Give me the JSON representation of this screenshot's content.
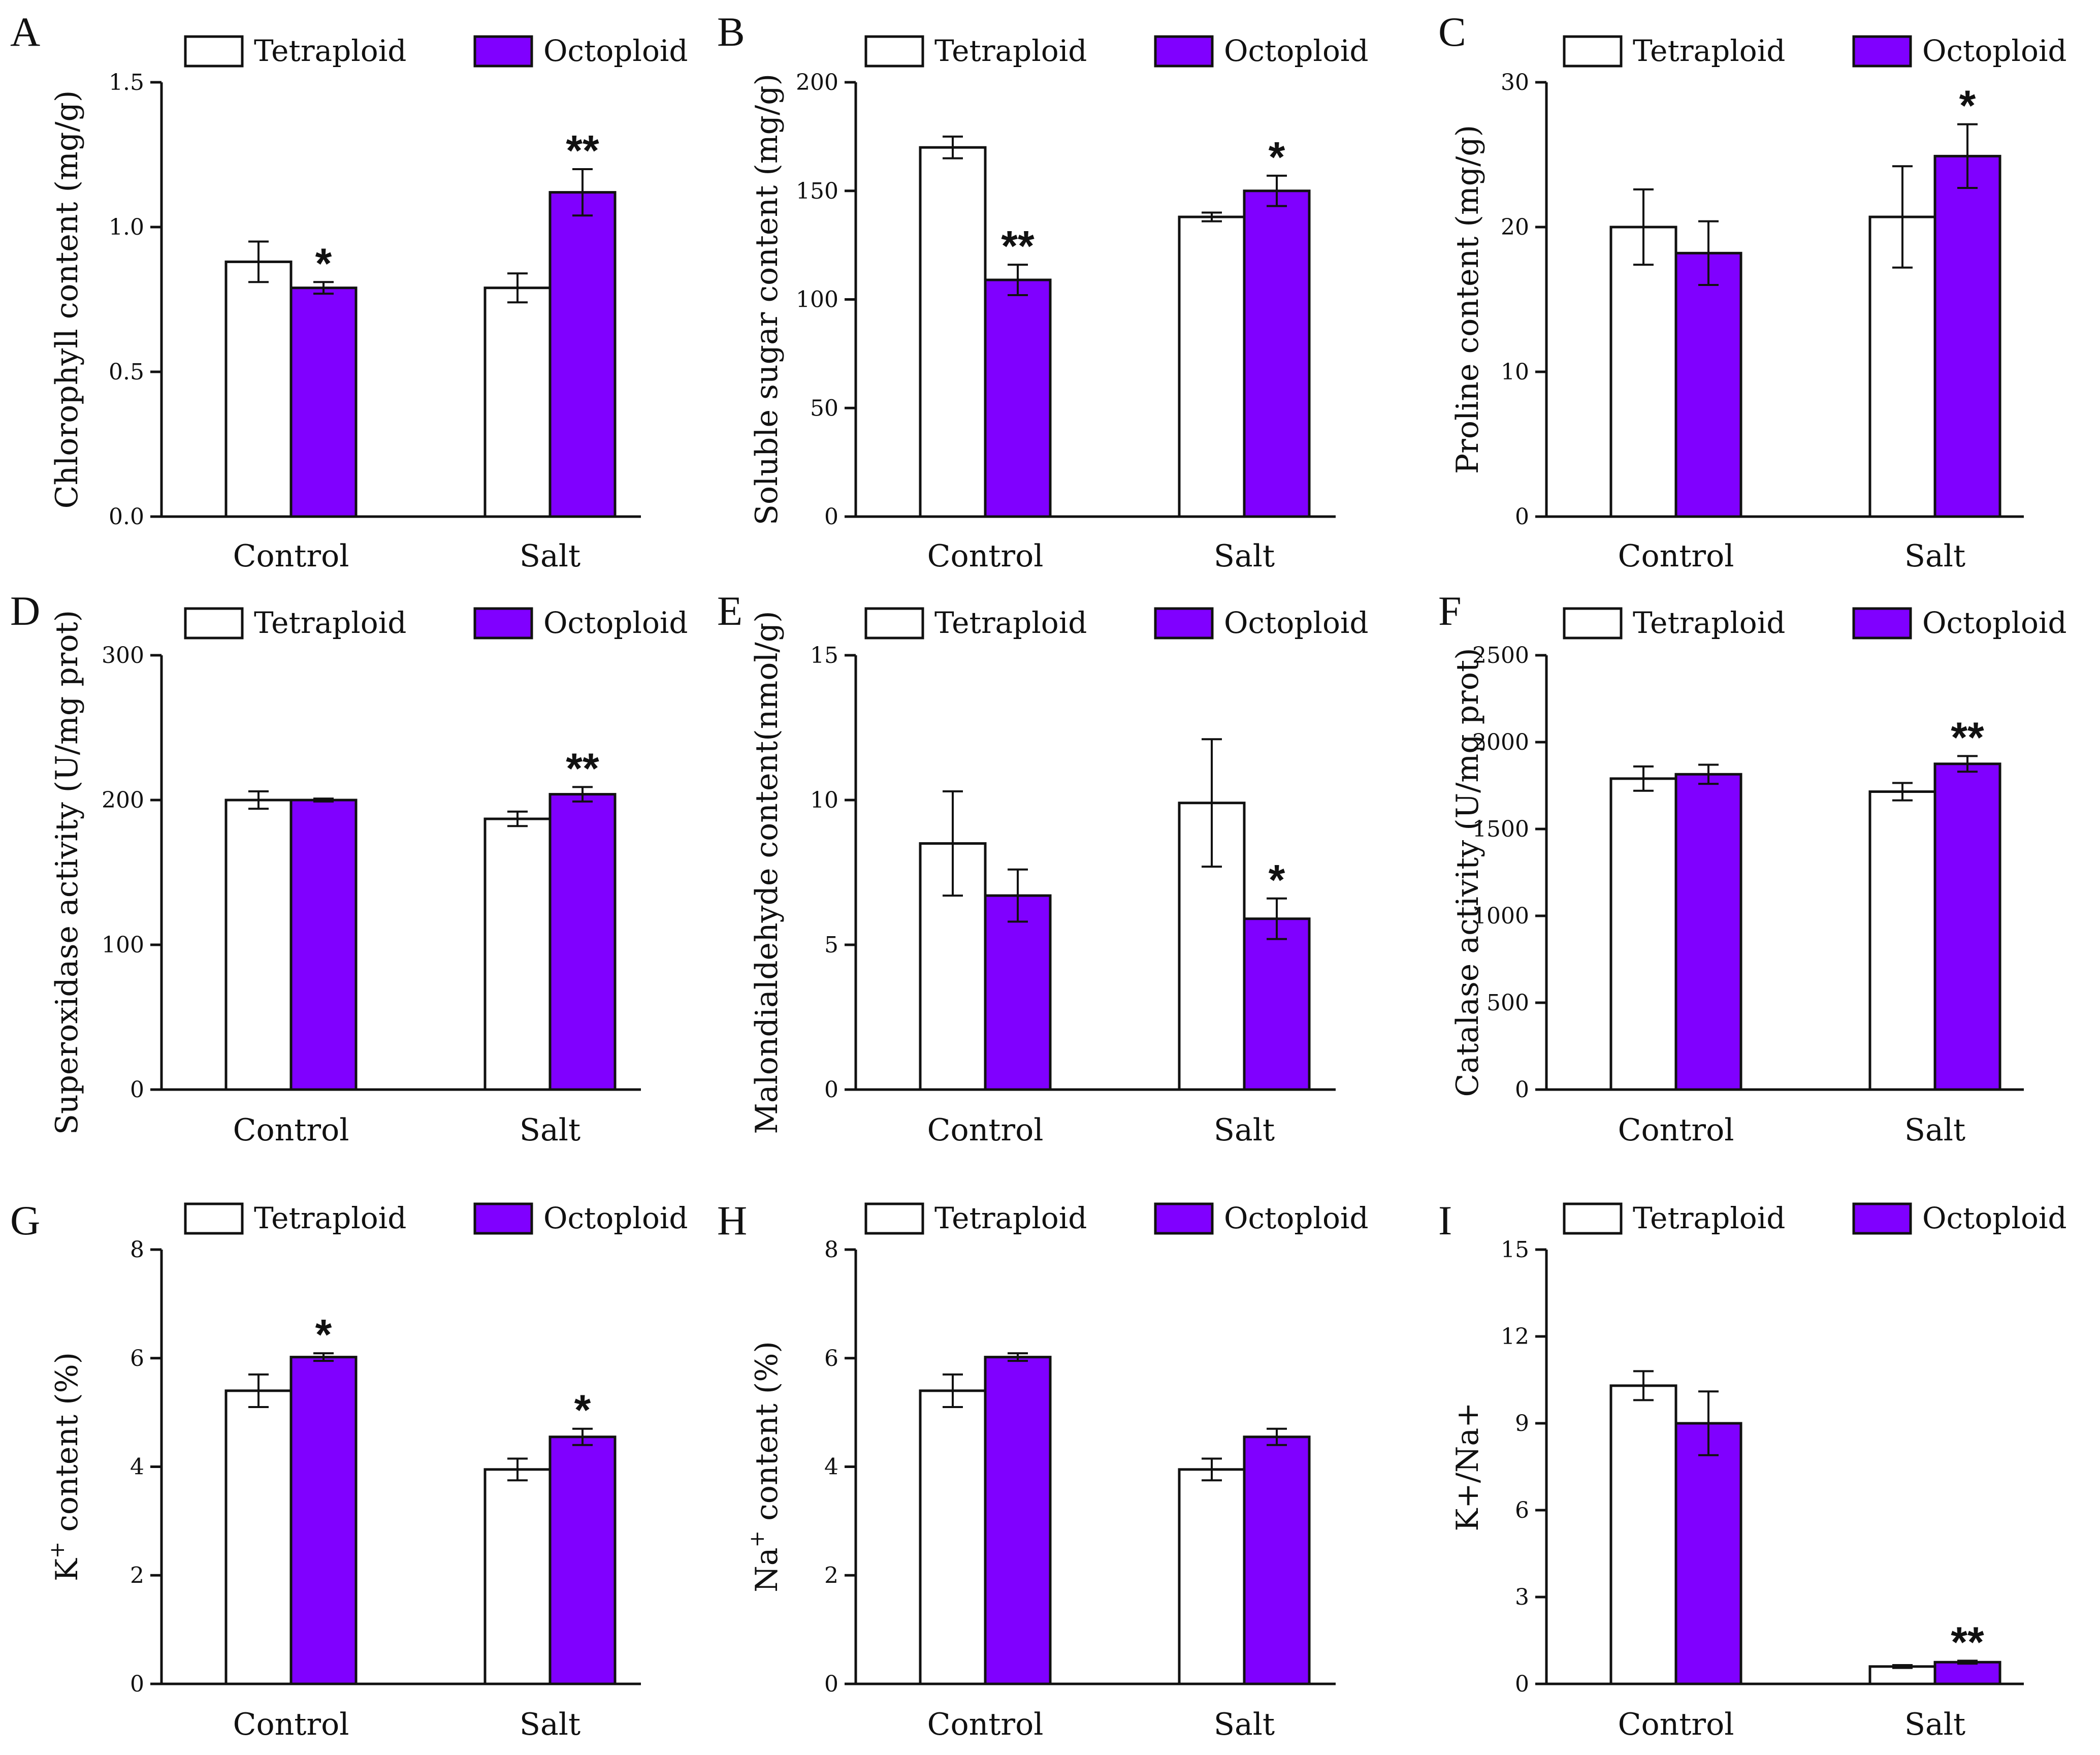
{
  "legend": {
    "tetraploid": "Tetraploid",
    "octoploid": "Octoploid"
  },
  "colors": {
    "tetraploid": "#ffffff",
    "octoploid": "#8000ff",
    "stroke": "#111111"
  },
  "chart_data": [
    {
      "panel": "A",
      "type": "bar",
      "categories": [
        "Control",
        "Salt"
      ],
      "ylabel": "Chlorophyll content (mg/g)",
      "ylim": [
        0,
        1.5
      ],
      "yticks": [
        "0.0",
        "0.5",
        "1.0",
        "1.5"
      ],
      "series": [
        {
          "name": "Tetraploid",
          "values": [
            0.88,
            0.79
          ],
          "errors": [
            0.07,
            0.05
          ],
          "sig": [
            "",
            ""
          ]
        },
        {
          "name": "Octoploid",
          "values": [
            0.79,
            1.12
          ],
          "errors": [
            0.02,
            0.08
          ],
          "sig": [
            "*",
            "**"
          ]
        }
      ]
    },
    {
      "panel": "B",
      "type": "bar",
      "categories": [
        "Control",
        "Salt"
      ],
      "ylabel": "Soluble sugar content (mg/g)",
      "ylim": [
        0,
        200
      ],
      "yticks": [
        "0",
        "50",
        "100",
        "150",
        "200"
      ],
      "series": [
        {
          "name": "Tetraploid",
          "values": [
            170,
            138
          ],
          "errors": [
            5,
            2
          ],
          "sig": [
            "",
            ""
          ]
        },
        {
          "name": "Octoploid",
          "values": [
            109,
            150
          ],
          "errors": [
            7,
            7
          ],
          "sig": [
            "**",
            "*"
          ]
        }
      ]
    },
    {
      "panel": "C",
      "type": "bar",
      "categories": [
        "Control",
        "Salt"
      ],
      "ylabel": "Proline content (mg/g)",
      "ylim": [
        0,
        30
      ],
      "yticks": [
        "0",
        "10",
        "20",
        "30"
      ],
      "series": [
        {
          "name": "Tetraploid",
          "values": [
            20.0,
            20.7
          ],
          "errors": [
            2.6,
            3.5
          ],
          "sig": [
            "",
            ""
          ]
        },
        {
          "name": "Octoploid",
          "values": [
            18.2,
            24.9
          ],
          "errors": [
            2.2,
            2.2
          ],
          "sig": [
            "",
            "*"
          ]
        }
      ]
    },
    {
      "panel": "D",
      "type": "bar",
      "categories": [
        "Control",
        "Salt"
      ],
      "ylabel": "Superoxidase activity (U/mg prot)",
      "ylim": [
        0,
        300
      ],
      "yticks": [
        "0",
        "100",
        "200",
        "300"
      ],
      "series": [
        {
          "name": "Tetraploid",
          "values": [
            200,
            187
          ],
          "errors": [
            6,
            5
          ],
          "sig": [
            "",
            ""
          ]
        },
        {
          "name": "Octoploid",
          "values": [
            200,
            204
          ],
          "errors": [
            1,
            5
          ],
          "sig": [
            "",
            "**"
          ]
        }
      ]
    },
    {
      "panel": "E",
      "type": "bar",
      "categories": [
        "Control",
        "Salt"
      ],
      "ylabel": "Malondialdehyde content(nmol/g)",
      "ylim": [
        0,
        15
      ],
      "yticks": [
        "0",
        "5",
        "10",
        "15"
      ],
      "series": [
        {
          "name": "Tetraploid",
          "values": [
            8.5,
            9.9
          ],
          "errors": [
            1.8,
            2.2
          ],
          "sig": [
            "",
            ""
          ]
        },
        {
          "name": "Octoploid",
          "values": [
            6.7,
            5.9
          ],
          "errors": [
            0.9,
            0.7
          ],
          "sig": [
            "",
            "*"
          ]
        }
      ]
    },
    {
      "panel": "F",
      "type": "bar",
      "categories": [
        "Control",
        "Salt"
      ],
      "ylabel": "Catalase activity (U/mg prot)",
      "ylim": [
        0,
        2500
      ],
      "yticks": [
        "0",
        "500",
        "1000",
        "1500",
        "2000",
        "2500"
      ],
      "series": [
        {
          "name": "Tetraploid",
          "values": [
            1790,
            1715
          ],
          "errors": [
            70,
            50
          ],
          "sig": [
            "",
            ""
          ]
        },
        {
          "name": "Octoploid",
          "values": [
            1815,
            1875
          ],
          "errors": [
            55,
            45
          ],
          "sig": [
            "",
            "**"
          ]
        }
      ]
    },
    {
      "panel": "G",
      "type": "bar",
      "categories": [
        "Control",
        "Salt"
      ],
      "ylabel": "K+ content (%)",
      "ylabel_base": "K",
      "ylabel_sup": "+",
      "ylabel_rest": " content  (%)",
      "ylim": [
        0,
        8
      ],
      "yticks": [
        "0",
        "2",
        "4",
        "6",
        "8"
      ],
      "series": [
        {
          "name": "Tetraploid",
          "values": [
            5.4,
            3.95
          ],
          "errors": [
            0.3,
            0.2
          ],
          "sig": [
            "",
            ""
          ]
        },
        {
          "name": "Octoploid",
          "values": [
            6.02,
            4.55
          ],
          "errors": [
            0.07,
            0.15
          ],
          "sig": [
            "*",
            "*"
          ]
        }
      ]
    },
    {
      "panel": "H",
      "type": "bar",
      "categories": [
        "Control",
        "Salt"
      ],
      "ylabel": "Na+ content (%)",
      "ylabel_base": "Na",
      "ylabel_sup": "+",
      "ylabel_rest": " content  (%)",
      "ylim": [
        0,
        8
      ],
      "yticks": [
        "0",
        "2",
        "4",
        "6",
        "8"
      ],
      "series": [
        {
          "name": "Tetraploid",
          "values": [
            5.4,
            3.95
          ],
          "errors": [
            0.3,
            0.2
          ],
          "sig": [
            "",
            ""
          ]
        },
        {
          "name": "Octoploid",
          "values": [
            6.02,
            4.55
          ],
          "errors": [
            0.07,
            0.15
          ],
          "sig": [
            "",
            ""
          ]
        }
      ]
    },
    {
      "panel": "I",
      "type": "bar",
      "categories": [
        "Control",
        "Salt"
      ],
      "ylabel": "K+/Na+",
      "ylim": [
        0,
        15
      ],
      "yticks": [
        "0",
        "3",
        "6",
        "9",
        "12",
        "15"
      ],
      "series": [
        {
          "name": "Tetraploid",
          "values": [
            10.3,
            0.6
          ],
          "errors": [
            0.5,
            0.05
          ],
          "sig": [
            "",
            ""
          ]
        },
        {
          "name": "Octoploid",
          "values": [
            9.0,
            0.75
          ],
          "errors": [
            1.1,
            0.05
          ],
          "sig": [
            "",
            "**"
          ]
        }
      ]
    }
  ]
}
